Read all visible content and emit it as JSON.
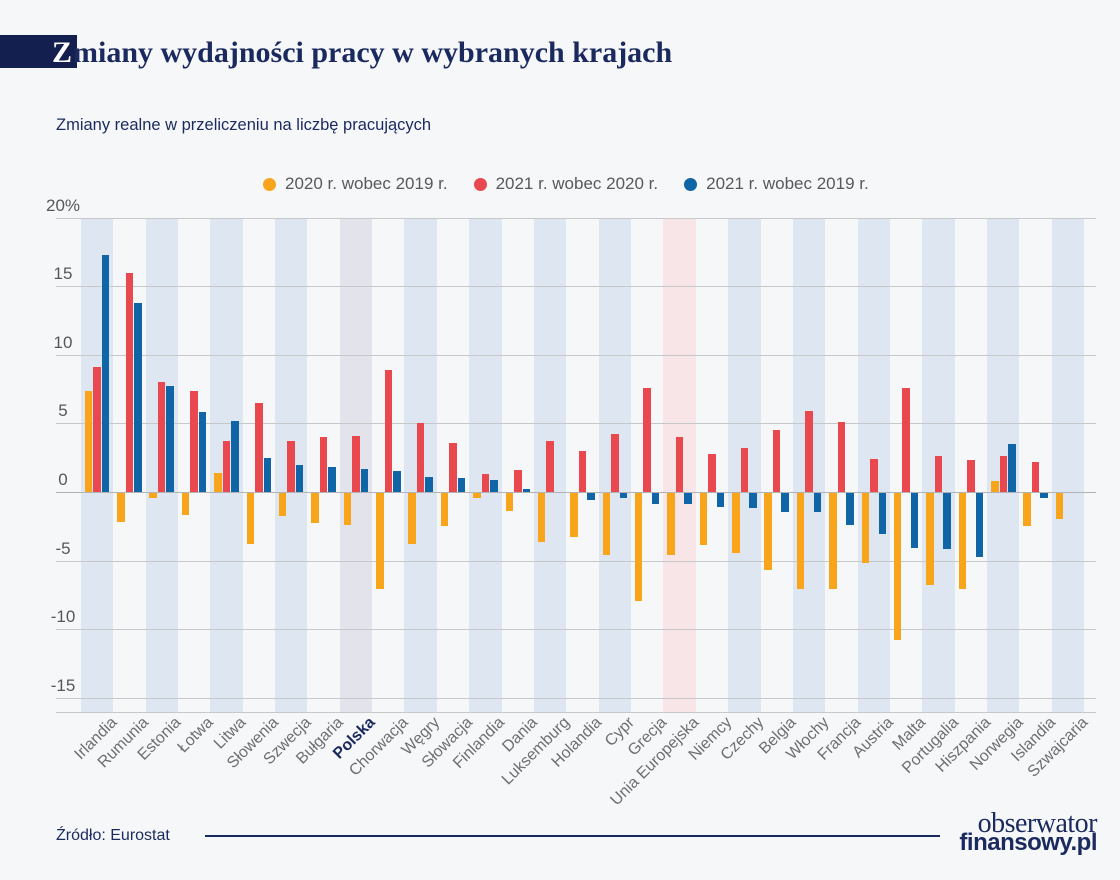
{
  "header": {
    "title_prefix": "Z",
    "title_rest": "miany wydajności pracy w wybranych krajach",
    "subtitle": "Zmiany realne w przeliczeniu na liczbę pracujących"
  },
  "chart_data": {
    "type": "bar",
    "title": "Zmiany wydajności pracy w wybranych krajach",
    "subtitle": "Zmiany realne w przeliczeniu na liczbę pracujących",
    "unit": "%",
    "ylim": [
      -15,
      20
    ],
    "yticks": [
      20,
      15,
      10,
      5,
      0,
      -5,
      -10,
      -15
    ],
    "ytick_top_label": "20%",
    "grid": true,
    "legend_position": "top",
    "categories": [
      "Irlandia",
      "Rumunia",
      "Estonia",
      "Łotwa",
      "Litwa",
      "Słowenia",
      "Szwecja",
      "Bułgaria",
      "Polska",
      "Chorwacja",
      "Węgry",
      "Słowacja",
      "Finlandia",
      "Dania",
      "Luksemburg",
      "Holandia",
      "Cypr",
      "Grecja",
      "Unia Europejska",
      "Niemcy",
      "Czechy",
      "Belgia",
      "Włochy",
      "Francja",
      "Austria",
      "Malta",
      "Portugalia",
      "Hiszpania",
      "Norwegia",
      "Islandia",
      "Szwajcaria"
    ],
    "series": [
      {
        "name": "2020 r. wobec 2019 r.",
        "color": "#f9a51b",
        "values": [
          7.4,
          -2.1,
          -0.4,
          -1.6,
          1.4,
          -3.7,
          -1.7,
          -2.2,
          -2.3,
          -7.0,
          -3.7,
          -2.4,
          -0.4,
          -1.3,
          -3.6,
          -3.2,
          -4.5,
          -7.9,
          -4.5,
          -3.8,
          -4.4,
          -5.6,
          -7.0,
          -7.0,
          -5.1,
          -10.7,
          -6.7,
          -7.0,
          0.8,
          -2.4,
          -1.9
        ]
      },
      {
        "name": "2021 r. wobec 2020 r.",
        "color": "#e9484f",
        "values": [
          9.1,
          16.0,
          8.0,
          7.4,
          3.7,
          6.5,
          3.7,
          4.0,
          4.1,
          8.9,
          5.0,
          3.6,
          1.3,
          1.6,
          3.7,
          3.0,
          4.2,
          7.6,
          4.0,
          2.8,
          3.2,
          4.5,
          5.9,
          5.1,
          2.4,
          7.6,
          2.6,
          2.3,
          2.6,
          2.2,
          null
        ]
      },
      {
        "name": "2021 r. wobec 2019 r.",
        "color": "#0f65a6",
        "values": [
          17.3,
          13.8,
          7.7,
          5.8,
          5.2,
          2.5,
          2.0,
          1.8,
          1.7,
          1.5,
          1.1,
          1.0,
          0.9,
          0.2,
          0,
          -0.5,
          -0.4,
          -0.8,
          -0.8,
          -1.0,
          -1.1,
          -1.4,
          -1.4,
          -2.3,
          -3.0,
          -4.0,
          -4.1,
          -4.7,
          3.5,
          -0.4,
          null
        ]
      }
    ],
    "highlighted_category": "Polska",
    "special_stripe_category": "Unia Europejska"
  },
  "colors": {
    "background": "#f6f7f9",
    "stripe": "#dee7f1",
    "stripe_highlight": "#e2e3eb",
    "stripe_special": "#f8e5e7",
    "accent_box": "#131f4e",
    "navy_text": "#1b2a5e"
  },
  "footer": {
    "source": "Źródło: Eurostat",
    "logo_line1": "obserwator",
    "logo_line2": "finansowy.pl"
  }
}
